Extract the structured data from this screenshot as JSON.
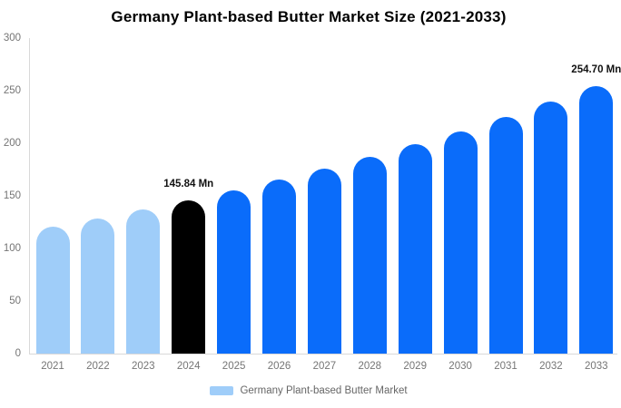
{
  "title": "Germany Plant-based Butter Market Size (2021-2033)",
  "legend": {
    "label": "Germany Plant-based Butter Market",
    "swatch_color": "#9FCDF9"
  },
  "colors": {
    "historical_bar": "#9FCDF9",
    "current_bar": "#000000",
    "forecast_bar": "#0A6CFA",
    "axis_line": "#D9D9D9",
    "tick_text": "#757575",
    "data_label_text": "#111111"
  },
  "chart_data": {
    "type": "bar",
    "title": "Germany Plant-based Butter Market Size (2021-2033)",
    "categories": [
      "2021",
      "2022",
      "2023",
      "2024",
      "2025",
      "2026",
      "2027",
      "2028",
      "2029",
      "2030",
      "2031",
      "2032",
      "2033"
    ],
    "values": [
      121.1,
      128.8,
      137.1,
      145.84,
      155.2,
      165.1,
      175.7,
      186.9,
      198.8,
      211.5,
      225.1,
      239.4,
      254.7
    ],
    "series_name": "Germany Plant-based Butter Market",
    "unit": "Mn",
    "bar_color_keys": [
      "historical_bar",
      "historical_bar",
      "historical_bar",
      "current_bar",
      "forecast_bar",
      "forecast_bar",
      "forecast_bar",
      "forecast_bar",
      "forecast_bar",
      "forecast_bar",
      "forecast_bar",
      "forecast_bar",
      "forecast_bar"
    ],
    "annotations": [
      {
        "index": 3,
        "text": "145.84 Mn"
      },
      {
        "index": 12,
        "text": "254.70 Mn"
      }
    ],
    "xlabel": "",
    "ylabel": "",
    "ylim": [
      0,
      300
    ],
    "yticks": [
      0,
      50,
      100,
      150,
      200,
      250,
      300
    ],
    "grid": false,
    "legend_position": "bottom"
  }
}
